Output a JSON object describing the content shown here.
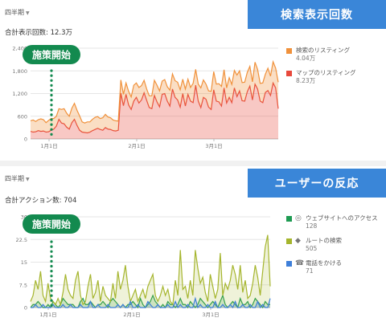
{
  "colors": {
    "banner": "#3a86d8",
    "pill": "#138a4f",
    "listing": "#f0913b",
    "maps": "#e8493c",
    "website": "#1e9b52",
    "route": "#a5b52d",
    "call": "#3e7fd9"
  },
  "panel1": {
    "period": "四半期",
    "total": "合計表示回数: 12.3万",
    "banner": "検索表示回数",
    "pill": "施策開始",
    "legend": [
      {
        "label": "検索のリスティング",
        "value": "4.04万",
        "color": "#f0913b"
      },
      {
        "label": "マップのリスティング",
        "value": "8.23万",
        "color": "#e8493c"
      }
    ]
  },
  "panel2": {
    "period": "四半期",
    "total": "合計アクション数: 704",
    "banner": "ユーザーの反応",
    "pill": "施策開始",
    "legend": [
      {
        "label": "ウェブサイトへのアクセス",
        "value": "128",
        "color": "#1e9b52",
        "icon": "globe-icon"
      },
      {
        "label": "ルートの検索",
        "value": "505",
        "color": "#a5b52d",
        "icon": "directions-icon"
      },
      {
        "label": "電話をかける",
        "value": "71",
        "color": "#3e7fd9",
        "icon": "phone-icon"
      }
    ]
  },
  "chart_data": [
    {
      "type": "area",
      "title": "合計表示回数: 12.3万",
      "x_ticks": [
        "1月1日",
        "2月1日",
        "3月1日"
      ],
      "y_ticks": [
        "0",
        "600",
        "1,200",
        "1,800",
        "2,400"
      ],
      "ylim": [
        0,
        2400
      ],
      "stacked": true,
      "annotation": "施策開始",
      "series": [
        {
          "name": "マップのリスティング",
          "values": [
            200,
            180,
            190,
            220,
            200,
            210,
            180,
            190,
            230,
            260,
            340,
            520,
            420,
            400,
            310,
            260,
            430,
            520,
            360,
            230,
            180,
            170,
            160,
            180,
            220,
            250,
            280,
            250,
            230,
            300,
            260,
            250,
            220,
            210,
            230,
            1210,
            880,
            1180,
            900,
            780,
            1000,
            1100,
            950,
            1030,
            1220,
            1020,
            830,
            800,
            1150,
            980,
            850,
            1180,
            1200,
            1000,
            870,
            1320,
            1100,
            1030,
            840,
            1200,
            870,
            1180,
            1000,
            960,
            1420,
            1000,
            830,
            1100,
            1050,
            840,
            780,
            1300,
            1000,
            980,
            870,
            1350,
            950,
            1100,
            960,
            1350,
            1120,
            1270,
            1010,
            1000,
            1250,
            1400,
            1030,
            1450,
            1320,
            1000,
            960,
            1230,
            1280,
            1150,
            1480,
            1350,
            800
          ]
        },
        {
          "name": "検索のリスティング",
          "values": [
            280,
            320,
            270,
            290,
            330,
            300,
            250,
            300,
            310,
            280,
            260,
            280,
            360,
            400,
            370,
            340,
            380,
            420,
            400,
            380,
            270,
            250,
            290,
            270,
            300,
            320,
            310,
            290,
            330,
            350,
            320,
            310,
            280,
            270,
            240,
            350,
            300,
            300,
            360,
            330,
            420,
            380,
            410,
            380,
            330,
            300,
            310,
            340,
            400,
            440,
            420,
            350,
            370,
            380,
            420,
            400,
            440,
            470,
            460,
            380,
            450,
            400,
            360,
            510,
            420,
            450,
            520,
            460,
            400,
            430,
            480,
            480,
            450,
            480,
            520,
            480,
            400,
            520,
            480,
            460,
            570,
            530,
            480,
            500,
            510,
            520,
            480,
            580,
            520,
            470,
            520,
            480,
            590,
            510,
            560,
            520,
            700
          ]
        }
      ]
    },
    {
      "type": "area",
      "title": "合計アクション数: 704",
      "x_ticks": [
        "1月1日",
        "2月1日",
        "3月1日"
      ],
      "y_ticks": [
        "0",
        "7.5",
        "15",
        "22.5",
        "30"
      ],
      "ylim": [
        0,
        30
      ],
      "stacked": false,
      "annotation": "施策開始",
      "series": [
        {
          "name": "ウェブサイトへのアクセス",
          "values": [
            0,
            1,
            1,
            2,
            1,
            0,
            0,
            1,
            0,
            2,
            1,
            0,
            1,
            3,
            2,
            1,
            1,
            1,
            0,
            0,
            2,
            3,
            1,
            1,
            2,
            1,
            0,
            1,
            1,
            2,
            1,
            0,
            2,
            3,
            2,
            1,
            0,
            1,
            0,
            1,
            1,
            2,
            1,
            0,
            3,
            1,
            0,
            1,
            2,
            4,
            2,
            1,
            0,
            1,
            0,
            2,
            1,
            1,
            0,
            1,
            3,
            1,
            1,
            0,
            2,
            1,
            0,
            1,
            3,
            2,
            1,
            0,
            1,
            2,
            1,
            0,
            2,
            4,
            1,
            0,
            1,
            2,
            1,
            0,
            3,
            1,
            1,
            2,
            0,
            1,
            3,
            2,
            1,
            0,
            2,
            1,
            1
          ]
        },
        {
          "name": "ルートの検索",
          "values": [
            2,
            4,
            9,
            6,
            12,
            4,
            2,
            8,
            3,
            2,
            1,
            3,
            1,
            5,
            11,
            6,
            4,
            3,
            9,
            12,
            4,
            1,
            2,
            7,
            11,
            3,
            5,
            9,
            2,
            7,
            4,
            3,
            2,
            8,
            3,
            12,
            6,
            9,
            14,
            7,
            2,
            4,
            6,
            2,
            4,
            6,
            3,
            7,
            9,
            11,
            4,
            2,
            4,
            7,
            4,
            6,
            2,
            1,
            9,
            4,
            19,
            6,
            7,
            3,
            9,
            4,
            19,
            13,
            8,
            10,
            5,
            2,
            11,
            7,
            3,
            6,
            18,
            4,
            8,
            6,
            9,
            14,
            11,
            6,
            14,
            5,
            9,
            3,
            4,
            8,
            14,
            10,
            4,
            12,
            20,
            24,
            7
          ]
        },
        {
          "name": "電話をかける",
          "values": [
            0,
            0,
            1,
            0,
            0,
            1,
            0,
            0,
            0,
            1,
            0,
            0,
            0,
            1,
            0,
            0,
            1,
            0,
            0,
            0,
            1,
            0,
            0,
            0,
            2,
            0,
            0,
            1,
            0,
            0,
            0,
            1,
            0,
            0,
            0,
            1,
            0,
            1,
            0,
            0,
            2,
            0,
            0,
            1,
            0,
            0,
            0,
            2,
            1,
            0,
            0,
            1,
            0,
            0,
            0,
            1,
            0,
            0,
            2,
            0,
            1,
            0,
            0,
            1,
            0,
            0,
            3,
            0,
            1,
            0,
            0,
            1,
            0,
            0,
            2,
            0,
            0,
            1,
            0,
            0,
            1,
            0,
            2,
            0,
            0,
            1,
            0,
            0,
            1,
            0,
            0,
            2,
            0,
            1,
            0,
            0,
            3
          ]
        }
      ]
    }
  ]
}
